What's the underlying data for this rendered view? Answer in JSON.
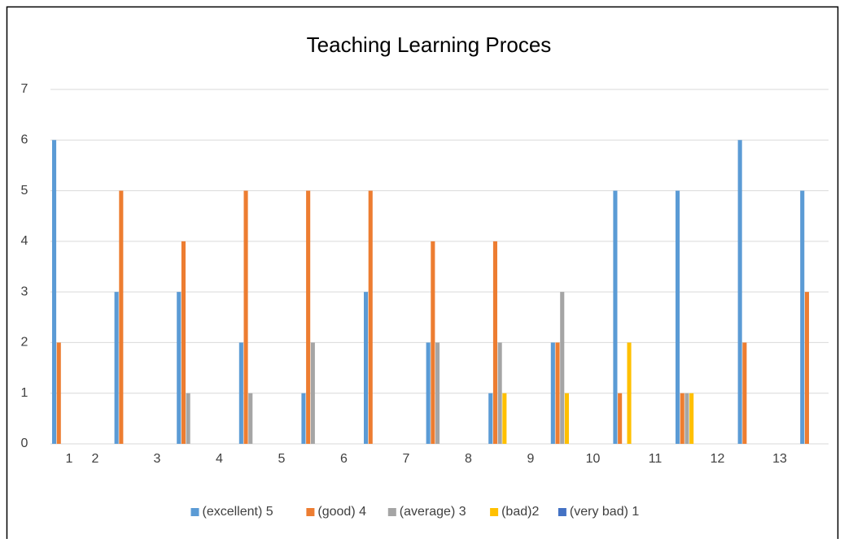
{
  "chart_data": {
    "type": "bar",
    "title": "Teaching Learning Proces",
    "categories": [
      "1",
      "2",
      "3",
      "4",
      "5",
      "6",
      "7",
      "8",
      "9",
      "10",
      "11",
      "12",
      "13"
    ],
    "series": [
      {
        "name": "(excellent) 5",
        "color": "#5b9bd5",
        "values": [
          6,
          3,
          3,
          2,
          1,
          3,
          2,
          1,
          2,
          5,
          5,
          6,
          5
        ]
      },
      {
        "name": "(good) 4",
        "color": "#ed7d31",
        "values": [
          2,
          5,
          4,
          5,
          5,
          5,
          4,
          4,
          2,
          1,
          1,
          2,
          3
        ]
      },
      {
        "name": "(average) 3",
        "color": "#a5a5a5",
        "values": [
          0,
          0,
          1,
          1,
          2,
          0,
          2,
          2,
          3,
          0,
          1,
          0,
          0
        ]
      },
      {
        "name": "(bad)2",
        "color": "#ffc000",
        "values": [
          0,
          0,
          0,
          0,
          0,
          0,
          0,
          1,
          1,
          2,
          1,
          0,
          0
        ]
      },
      {
        "name": "(very bad) 1",
        "color": "#4472c4",
        "values": [
          0,
          0,
          0,
          0,
          0,
          0,
          0,
          0,
          0,
          0,
          0,
          0,
          0
        ]
      }
    ],
    "ylim": [
      0,
      7
    ],
    "yticks": [
      0,
      1,
      2,
      3,
      4,
      5,
      6,
      7
    ],
    "grid": true,
    "legend": "bottom"
  }
}
